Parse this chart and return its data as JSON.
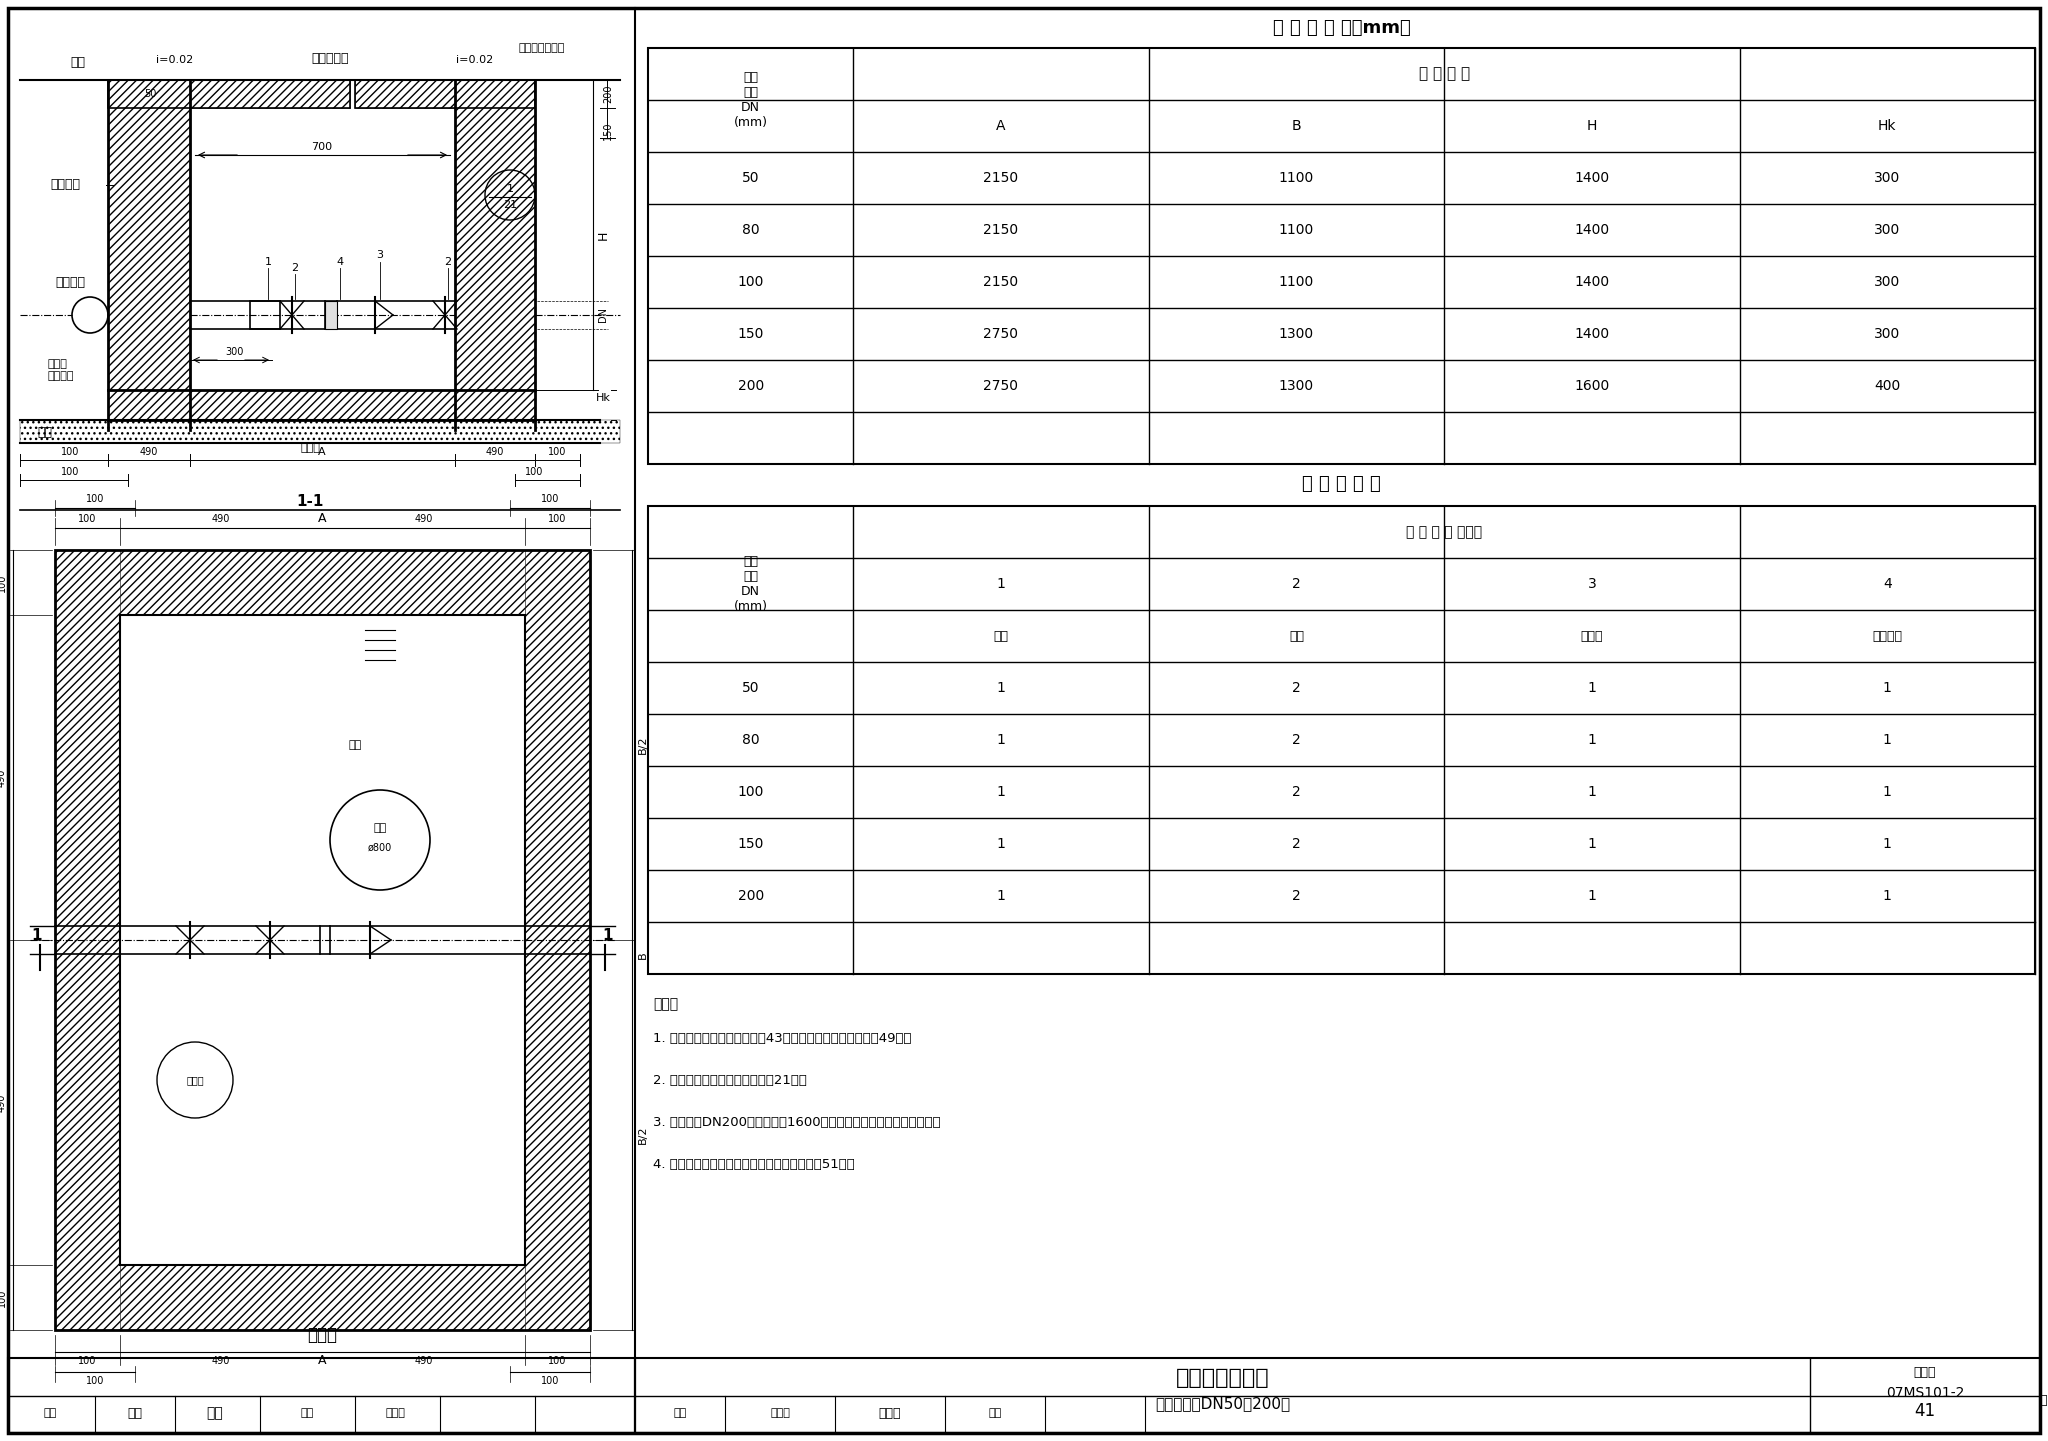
{
  "title": "砖砌矩形水表井",
  "subtitle": "（不带旁通DN50～200）",
  "fig_number": "07MS101-2",
  "page": "41",
  "figure_set": "图集号",
  "page_label": "页",
  "dim_table_title": "各 部 尺 寸 表（mm）",
  "mat_table_title": "各 部 材 料 表",
  "dim_table_subheader": "各 部 尺 寸",
  "dim_table_data": [
    [
      50,
      2150,
      1100,
      1400,
      300
    ],
    [
      80,
      2150,
      1100,
      1400,
      300
    ],
    [
      100,
      2150,
      1100,
      1400,
      300
    ],
    [
      150,
      2750,
      1300,
      1400,
      300
    ],
    [
      200,
      2750,
      1300,
      1600,
      400
    ]
  ],
  "mat_table_subheader": "材 料 数 量 （个）",
  "mat_table_data": [
    [
      50,
      1,
      2,
      1,
      1
    ],
    [
      80,
      1,
      2,
      1,
      1
    ],
    [
      100,
      1,
      2,
      1,
      1
    ],
    [
      150,
      1,
      2,
      1,
      1
    ],
    [
      200,
      1,
      2,
      1,
      1
    ]
  ],
  "notes_title": "说明：",
  "notes": [
    "1. 盖板平面布置图见本图集第43页，底板配筋图见本图集第49页。",
    "2. 集水坑、踏步做法见本图集第21页。",
    "3. 管径大于DN200、井深大于1600的水表井采用钢筋混凝土水表井。",
    "4. 砖砌矩形水表井主要材料汇总表见本图集第51页。"
  ]
}
